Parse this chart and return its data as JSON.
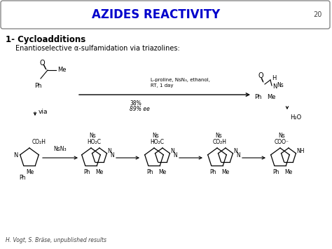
{
  "title": "AZIDES REACTIVITY",
  "slide_number": "20",
  "title_color": "#0000CC",
  "title_bg": "#FFFFFF",
  "title_border": "#888888",
  "section_heading": "1- Cycloadditions",
  "subtitle_text": "Enantioselective α-sulfamidation via triazolines:",
  "footer": "H. Vogt, S. Bräse, unpublished results",
  "reaction_arrow_text1": "L-proline, NsN₃, ethanol,",
  "reaction_arrow_text2": "RT, 1 day",
  "yield_text1": "38%",
  "yield_text2": "89% ee",
  "h2o_text": "H₂O",
  "bg_color": "#FFFFFF",
  "figw": 4.74,
  "figh": 3.55,
  "dpi": 100
}
